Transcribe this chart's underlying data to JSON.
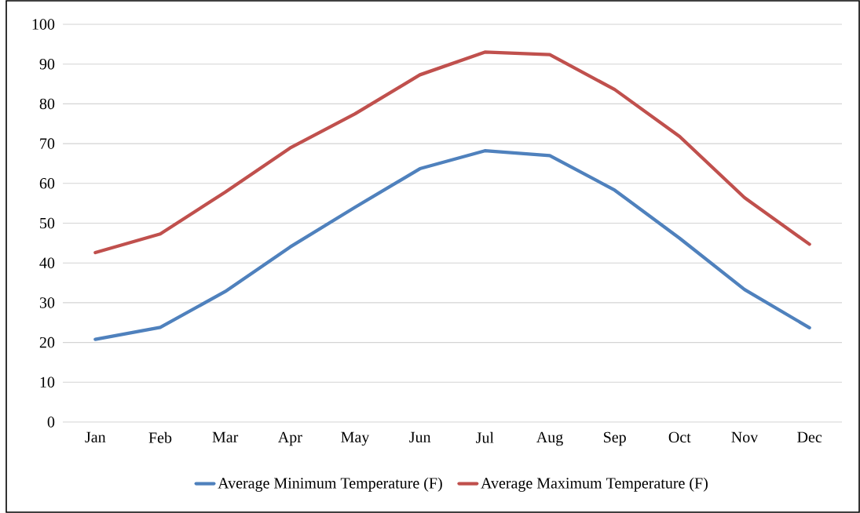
{
  "chart_data": {
    "type": "line",
    "categories": [
      "Jan",
      "Feb",
      "Mar",
      "Apr",
      "May",
      "Jun",
      "Jul",
      "Aug",
      "Sep",
      "Oct",
      "Nov",
      "Dec"
    ],
    "series": [
      {
        "name": "Average Minimum Temperature (F)",
        "color": "#4f81bd",
        "values": [
          20.8,
          23.8,
          32.8,
          44,
          54,
          63.7,
          68.2,
          67,
          58.3,
          46.2,
          33.3,
          23.7
        ]
      },
      {
        "name": "Average Maximum Temperature (F)",
        "color": "#c0504d",
        "values": [
          42.6,
          47.3,
          57.8,
          68.9,
          77.5,
          87.3,
          93,
          92.4,
          83.6,
          71.8,
          56.4,
          44.7
        ]
      }
    ],
    "ylim": [
      0,
      100
    ],
    "yticks": [
      0,
      10,
      20,
      30,
      40,
      50,
      60,
      70,
      80,
      90,
      100
    ],
    "grid": "y",
    "legend": "bottom"
  }
}
